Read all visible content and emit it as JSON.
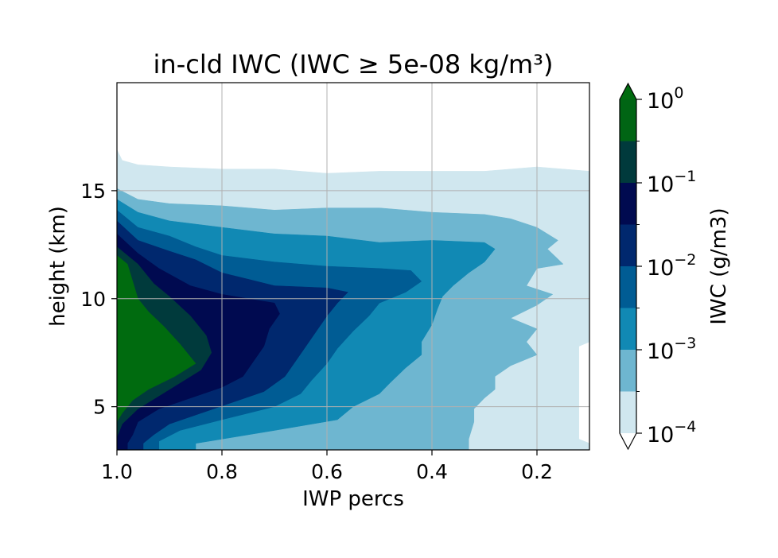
{
  "chart_data": {
    "type": "contourf",
    "title": "in-cld IWC (IWC ≥ 5e-08 kg/m³)",
    "xlabel": "IWP percs",
    "ylabel": "height (km)",
    "x_reversed": true,
    "xlim": [
      1.0,
      0.1
    ],
    "ylim": [
      3,
      20
    ],
    "xticks": [
      "1.0",
      "0.8",
      "0.6",
      "0.4",
      "0.2"
    ],
    "xtick_values": [
      1.0,
      0.8,
      0.6,
      0.4,
      0.2
    ],
    "yticks": [
      "5",
      "10",
      "15"
    ],
    "ytick_values": [
      5,
      10,
      15
    ],
    "grid": true,
    "colorbar": {
      "label": "IWC (g/m3)",
      "scale": "log",
      "extend": "both",
      "ticks": [
        {
          "mant": "10",
          "exp": "0",
          "value": 1
        },
        {
          "mant": "10",
          "exp": "−1",
          "value": 0.1
        },
        {
          "mant": "10",
          "exp": "−2",
          "value": 0.01
        },
        {
          "mant": "10",
          "exp": "−3",
          "value": 0.001
        },
        {
          "mant": "10",
          "exp": "−4",
          "value": 0.0001
        }
      ],
      "levels_log10": [
        -4,
        -3.5,
        -3,
        -2.5,
        -2,
        -1.5,
        -1,
        -0.5,
        0
      ],
      "colors": [
        "#d0e7ef",
        "#6eb6d0",
        "#1189b4",
        "#005c94",
        "#00286e",
        "#000a50",
        "#003a3c",
        "#006514",
        "#006b0f"
      ],
      "under_color": "#ffffff",
      "over_color": "#006b0f"
    },
    "contours": [
      {
        "level_log10": -4,
        "color": "#d0e7ef",
        "boundary": [
          [
            1.0,
            3
          ],
          [
            1.0,
            16.9
          ],
          [
            0.99,
            16.4
          ],
          [
            0.96,
            16.2
          ],
          [
            0.9,
            16.1
          ],
          [
            0.8,
            16.0
          ],
          [
            0.7,
            16.0
          ],
          [
            0.6,
            15.8
          ],
          [
            0.5,
            15.9
          ],
          [
            0.4,
            15.9
          ],
          [
            0.3,
            15.9
          ],
          [
            0.2,
            16.1
          ],
          [
            0.1,
            15.9
          ],
          [
            0.1,
            8.0
          ],
          [
            0.12,
            7.8
          ],
          [
            0.12,
            3.5
          ],
          [
            0.1,
            3.3
          ],
          [
            0.1,
            3
          ]
        ]
      },
      {
        "level_log10": -3.5,
        "color": "#6eb6d0",
        "boundary": [
          [
            1.0,
            3
          ],
          [
            1.0,
            15.1
          ],
          [
            0.96,
            14.6
          ],
          [
            0.9,
            14.4
          ],
          [
            0.8,
            14.3
          ],
          [
            0.7,
            14.1
          ],
          [
            0.6,
            14.2
          ],
          [
            0.5,
            14.2
          ],
          [
            0.4,
            14.0
          ],
          [
            0.3,
            13.9
          ],
          [
            0.25,
            13.7
          ],
          [
            0.2,
            13.3
          ],
          [
            0.16,
            12.7
          ],
          [
            0.18,
            12.3
          ],
          [
            0.15,
            11.6
          ],
          [
            0.2,
            11.4
          ],
          [
            0.22,
            10.6
          ],
          [
            0.17,
            10.2
          ],
          [
            0.2,
            9.7
          ],
          [
            0.25,
            9.1
          ],
          [
            0.2,
            8.6
          ],
          [
            0.22,
            8.0
          ],
          [
            0.2,
            7.4
          ],
          [
            0.25,
            6.9
          ],
          [
            0.28,
            6.4
          ],
          [
            0.28,
            5.8
          ],
          [
            0.3,
            5.4
          ],
          [
            0.32,
            4.9
          ],
          [
            0.32,
            4.3
          ],
          [
            0.33,
            3.5
          ],
          [
            0.33,
            3
          ]
        ]
      },
      {
        "level_log10": -3,
        "color": "#1189b4",
        "boundary": [
          [
            1.0,
            3
          ],
          [
            1.0,
            14.6
          ],
          [
            0.96,
            14.0
          ],
          [
            0.9,
            13.6
          ],
          [
            0.8,
            13.3
          ],
          [
            0.7,
            13.0
          ],
          [
            0.6,
            12.9
          ],
          [
            0.5,
            12.6
          ],
          [
            0.4,
            12.7
          ],
          [
            0.3,
            12.6
          ],
          [
            0.28,
            12.3
          ],
          [
            0.3,
            11.7
          ],
          [
            0.33,
            11.2
          ],
          [
            0.36,
            10.6
          ],
          [
            0.38,
            10.1
          ],
          [
            0.39,
            9.5
          ],
          [
            0.4,
            8.8
          ],
          [
            0.42,
            8.0
          ],
          [
            0.42,
            7.4
          ],
          [
            0.45,
            6.8
          ],
          [
            0.48,
            6.1
          ],
          [
            0.5,
            5.6
          ],
          [
            0.55,
            5.0
          ],
          [
            0.58,
            4.4
          ],
          [
            0.7,
            3.9
          ],
          [
            0.8,
            3.5
          ],
          [
            0.85,
            3.3
          ],
          [
            0.85,
            3
          ]
        ]
      },
      {
        "level_log10": -2.5,
        "color": "#005c94",
        "boundary": [
          [
            1.0,
            3
          ],
          [
            1.0,
            14.1
          ],
          [
            0.96,
            13.3
          ],
          [
            0.9,
            12.9
          ],
          [
            0.85,
            12.4
          ],
          [
            0.8,
            12.0
          ],
          [
            0.7,
            11.7
          ],
          [
            0.6,
            11.5
          ],
          [
            0.5,
            11.4
          ],
          [
            0.44,
            11.3
          ],
          [
            0.42,
            10.8
          ],
          [
            0.45,
            10.3
          ],
          [
            0.5,
            9.8
          ],
          [
            0.52,
            9.2
          ],
          [
            0.55,
            8.5
          ],
          [
            0.58,
            7.7
          ],
          [
            0.6,
            7.0
          ],
          [
            0.63,
            6.2
          ],
          [
            0.65,
            5.6
          ],
          [
            0.7,
            5.0
          ],
          [
            0.8,
            4.4
          ],
          [
            0.88,
            3.9
          ],
          [
            0.92,
            3.4
          ],
          [
            0.92,
            3
          ]
        ]
      },
      {
        "level_log10": -2,
        "color": "#00286e",
        "boundary": [
          [
            1.0,
            3
          ],
          [
            1.0,
            13.6
          ],
          [
            0.96,
            12.7
          ],
          [
            0.9,
            12.2
          ],
          [
            0.85,
            11.8
          ],
          [
            0.8,
            11.2
          ],
          [
            0.75,
            10.9
          ],
          [
            0.7,
            10.6
          ],
          [
            0.6,
            10.5
          ],
          [
            0.56,
            10.3
          ],
          [
            0.58,
            9.8
          ],
          [
            0.6,
            9.2
          ],
          [
            0.62,
            8.5
          ],
          [
            0.64,
            7.8
          ],
          [
            0.66,
            7.1
          ],
          [
            0.68,
            6.4
          ],
          [
            0.72,
            5.7
          ],
          [
            0.78,
            5.2
          ],
          [
            0.84,
            4.7
          ],
          [
            0.9,
            4.2
          ],
          [
            0.93,
            3.7
          ],
          [
            0.95,
            3.3
          ],
          [
            0.95,
            3
          ]
        ]
      },
      {
        "level_log10": -1.5,
        "color": "#000a50",
        "boundary": [
          [
            1.0,
            3
          ],
          [
            1.0,
            13.0
          ],
          [
            0.96,
            12.1
          ],
          [
            0.92,
            11.4
          ],
          [
            0.86,
            10.6
          ],
          [
            0.8,
            10.2
          ],
          [
            0.75,
            10.0
          ],
          [
            0.7,
            9.8
          ],
          [
            0.69,
            9.3
          ],
          [
            0.71,
            8.6
          ],
          [
            0.72,
            7.8
          ],
          [
            0.74,
            7.1
          ],
          [
            0.76,
            6.4
          ],
          [
            0.8,
            5.9
          ],
          [
            0.86,
            5.4
          ],
          [
            0.92,
            4.9
          ],
          [
            0.96,
            4.3
          ],
          [
            0.97,
            3.7
          ],
          [
            0.98,
            3.3
          ],
          [
            0.98,
            3
          ]
        ]
      },
      {
        "level_log10": -1,
        "color": "#003a3c",
        "boundary": [
          [
            1.0,
            3
          ],
          [
            1.0,
            12.4
          ],
          [
            0.96,
            11.6
          ],
          [
            0.93,
            10.7
          ],
          [
            0.9,
            10.1
          ],
          [
            0.86,
            9.2
          ],
          [
            0.83,
            8.3
          ],
          [
            0.82,
            7.5
          ],
          [
            0.84,
            6.7
          ],
          [
            0.88,
            6.1
          ],
          [
            0.92,
            5.5
          ],
          [
            0.96,
            4.9
          ],
          [
            0.99,
            4.2
          ],
          [
            1.0,
            3.6
          ],
          [
            1.0,
            3
          ]
        ]
      },
      {
        "level_log10": -0.5,
        "color": "#006b0f",
        "boundary": [
          [
            1.0,
            4.3
          ],
          [
            1.0,
            12.0
          ],
          [
            0.98,
            11.6
          ],
          [
            0.97,
            10.8
          ],
          [
            0.96,
            10.0
          ],
          [
            0.94,
            9.4
          ],
          [
            0.91,
            8.7
          ],
          [
            0.88,
            7.9
          ],
          [
            0.85,
            7.0
          ],
          [
            0.89,
            6.4
          ],
          [
            0.94,
            5.8
          ],
          [
            0.97,
            5.3
          ],
          [
            0.99,
            4.7
          ],
          [
            1.0,
            4.3
          ]
        ]
      }
    ]
  }
}
